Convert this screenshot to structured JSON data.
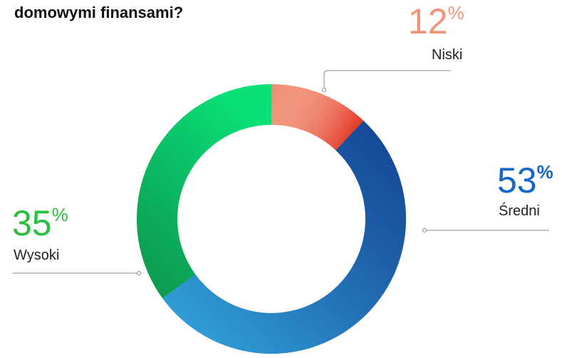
{
  "chart_data": {
    "type": "donut",
    "title": "domowymi finansami?",
    "categories": [
      "Niski",
      "Średni",
      "Wysoki"
    ],
    "values": [
      12,
      53,
      35
    ],
    "value_labels": [
      "12%",
      "53%",
      "35%"
    ],
    "colors": [
      "#ef8a6c",
      "#0b5fb0",
      "#1fbf45"
    ],
    "label_colors": [
      "#f2937a",
      "#1466c8",
      "#27bf3c"
    ]
  }
}
